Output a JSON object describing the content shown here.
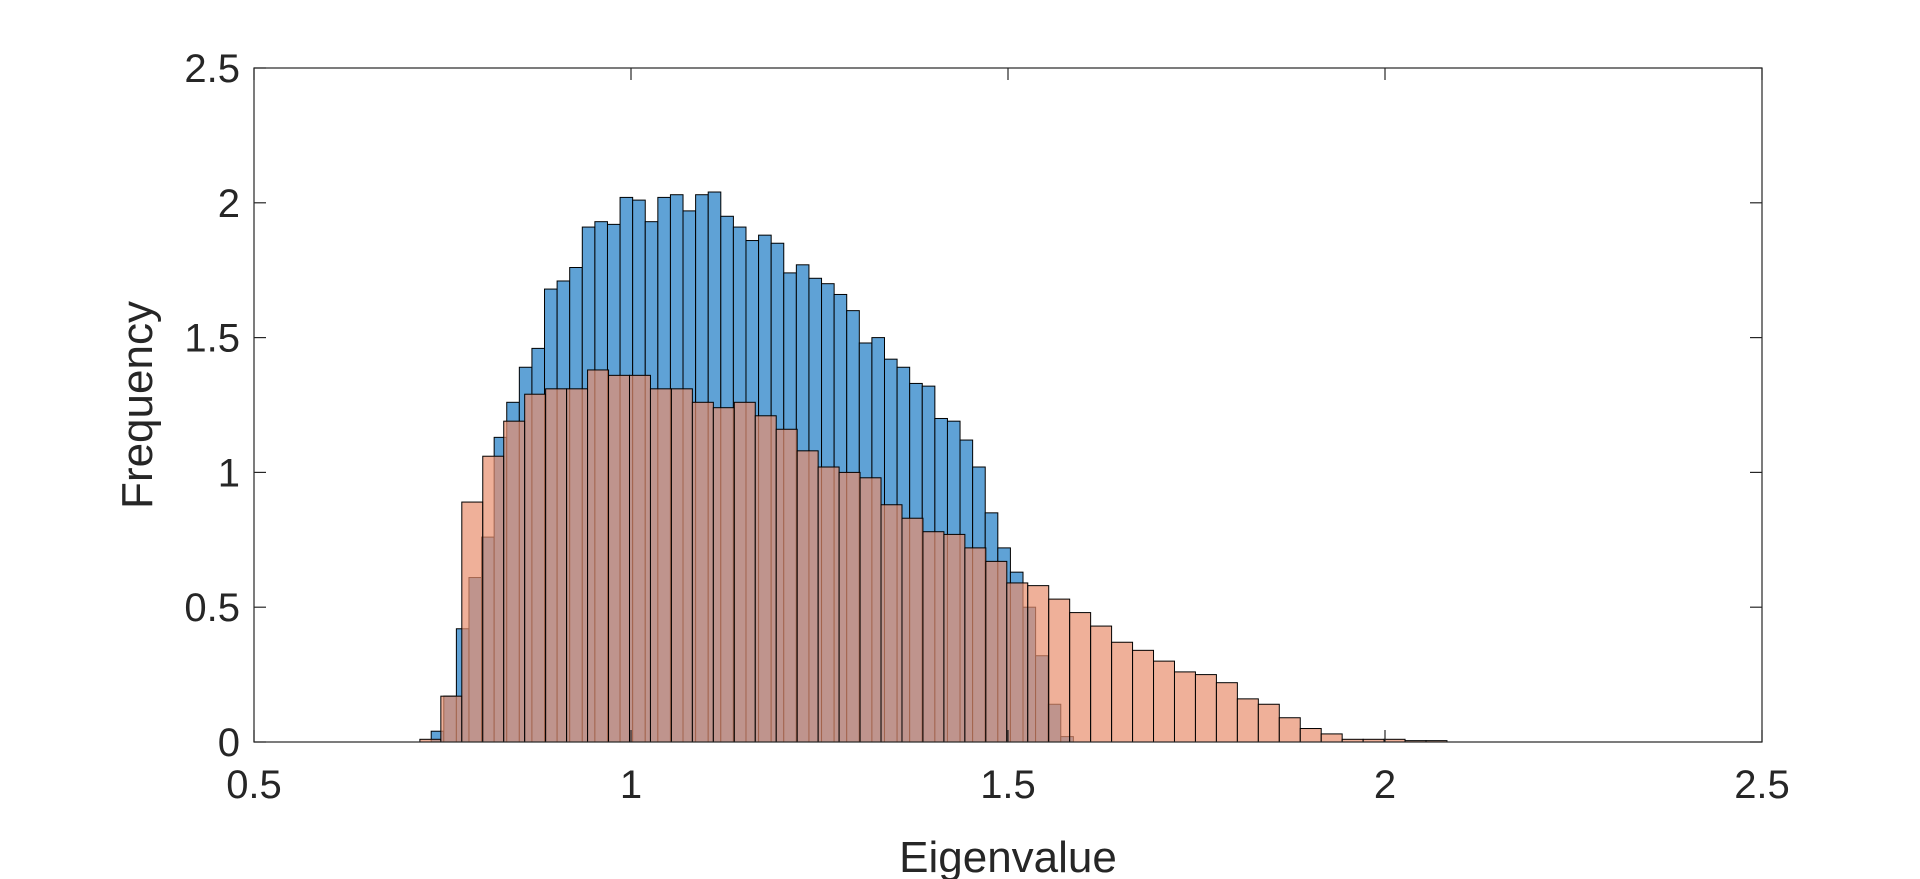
{
  "chart_data": {
    "type": "bar",
    "title": "",
    "xlabel": "Eigenvalue",
    "ylabel": "Frequency",
    "xlim": [
      0.5,
      2.5
    ],
    "ylim": [
      0,
      2.5
    ],
    "xticks": [
      "0.5",
      "1",
      "1.5",
      "2",
      "2.5"
    ],
    "yticks": [
      "0",
      "0.5",
      "1",
      "1.5",
      "2",
      "2.5"
    ],
    "grid": false,
    "legend": "none",
    "colors": {
      "series1": "#5FA2D6",
      "series2": "#E88E6D",
      "overlap": "#A2695A",
      "edge": "#000000",
      "axis": "#262626"
    },
    "series": [
      {
        "bin_start": 0.735,
        "bin_width": 0.0167,
        "values": [
          0.04,
          0.17,
          0.42,
          0.61,
          0.76,
          1.13,
          1.26,
          1.39,
          1.46,
          1.68,
          1.71,
          1.76,
          1.91,
          1.93,
          1.92,
          2.02,
          2.01,
          1.93,
          2.02,
          2.03,
          1.97,
          2.03,
          2.04,
          1.95,
          1.91,
          1.86,
          1.88,
          1.85,
          1.74,
          1.77,
          1.72,
          1.7,
          1.66,
          1.6,
          1.48,
          1.5,
          1.42,
          1.39,
          1.33,
          1.32,
          1.2,
          1.19,
          1.12,
          1.02,
          0.85,
          0.72,
          0.63,
          0.5,
          0.32,
          0.14,
          0.02
        ]
      },
      {
        "bin_start": 0.72,
        "bin_width": 0.0278,
        "values": [
          0.01,
          0.17,
          0.89,
          1.06,
          1.19,
          1.29,
          1.31,
          1.31,
          1.38,
          1.36,
          1.36,
          1.31,
          1.31,
          1.26,
          1.24,
          1.26,
          1.21,
          1.16,
          1.08,
          1.02,
          1.0,
          0.98,
          0.88,
          0.83,
          0.78,
          0.77,
          0.72,
          0.67,
          0.59,
          0.58,
          0.53,
          0.48,
          0.43,
          0.37,
          0.34,
          0.3,
          0.26,
          0.25,
          0.22,
          0.16,
          0.14,
          0.09,
          0.05,
          0.03,
          0.01,
          0.01,
          0.01,
          0.005,
          0.005
        ]
      }
    ]
  }
}
